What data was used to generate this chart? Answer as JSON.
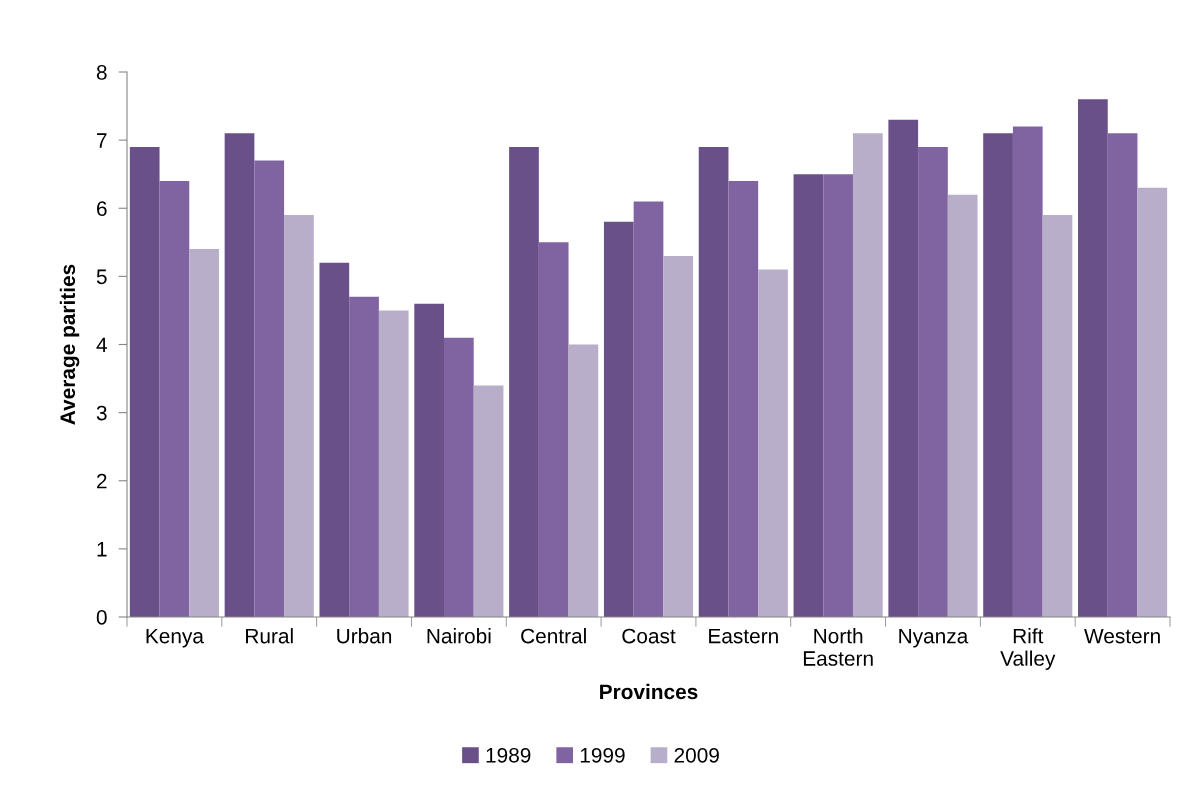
{
  "chart_data": {
    "type": "bar",
    "xlabel": "Provinces",
    "ylabel": "Average parities",
    "categories": [
      "Kenya",
      "Rural",
      "Urban",
      "Nairobi",
      "Central",
      "Coast",
      "Eastern",
      "North Eastern",
      "Nyanza",
      "Rift Valley",
      "Western"
    ],
    "series": [
      {
        "name": "1989",
        "color": "#6a5088",
        "values": [
          6.9,
          7.1,
          5.2,
          4.6,
          6.9,
          5.8,
          6.9,
          6.5,
          7.3,
          7.1,
          7.6
        ]
      },
      {
        "name": "1999",
        "color": "#8064a2",
        "values": [
          6.4,
          6.7,
          4.7,
          4.1,
          5.5,
          6.1,
          6.4,
          6.5,
          6.9,
          7.2,
          7.1
        ]
      },
      {
        "name": "2009",
        "color": "#b9aec9",
        "values": [
          5.4,
          5.9,
          4.5,
          3.4,
          4.0,
          5.3,
          5.1,
          7.1,
          6.2,
          5.9,
          6.3
        ]
      }
    ],
    "ylim": [
      0,
      8
    ],
    "yticks": [
      0,
      1,
      2,
      3,
      4,
      5,
      6,
      7,
      8
    ],
    "grid": false,
    "legend": "bottom"
  }
}
